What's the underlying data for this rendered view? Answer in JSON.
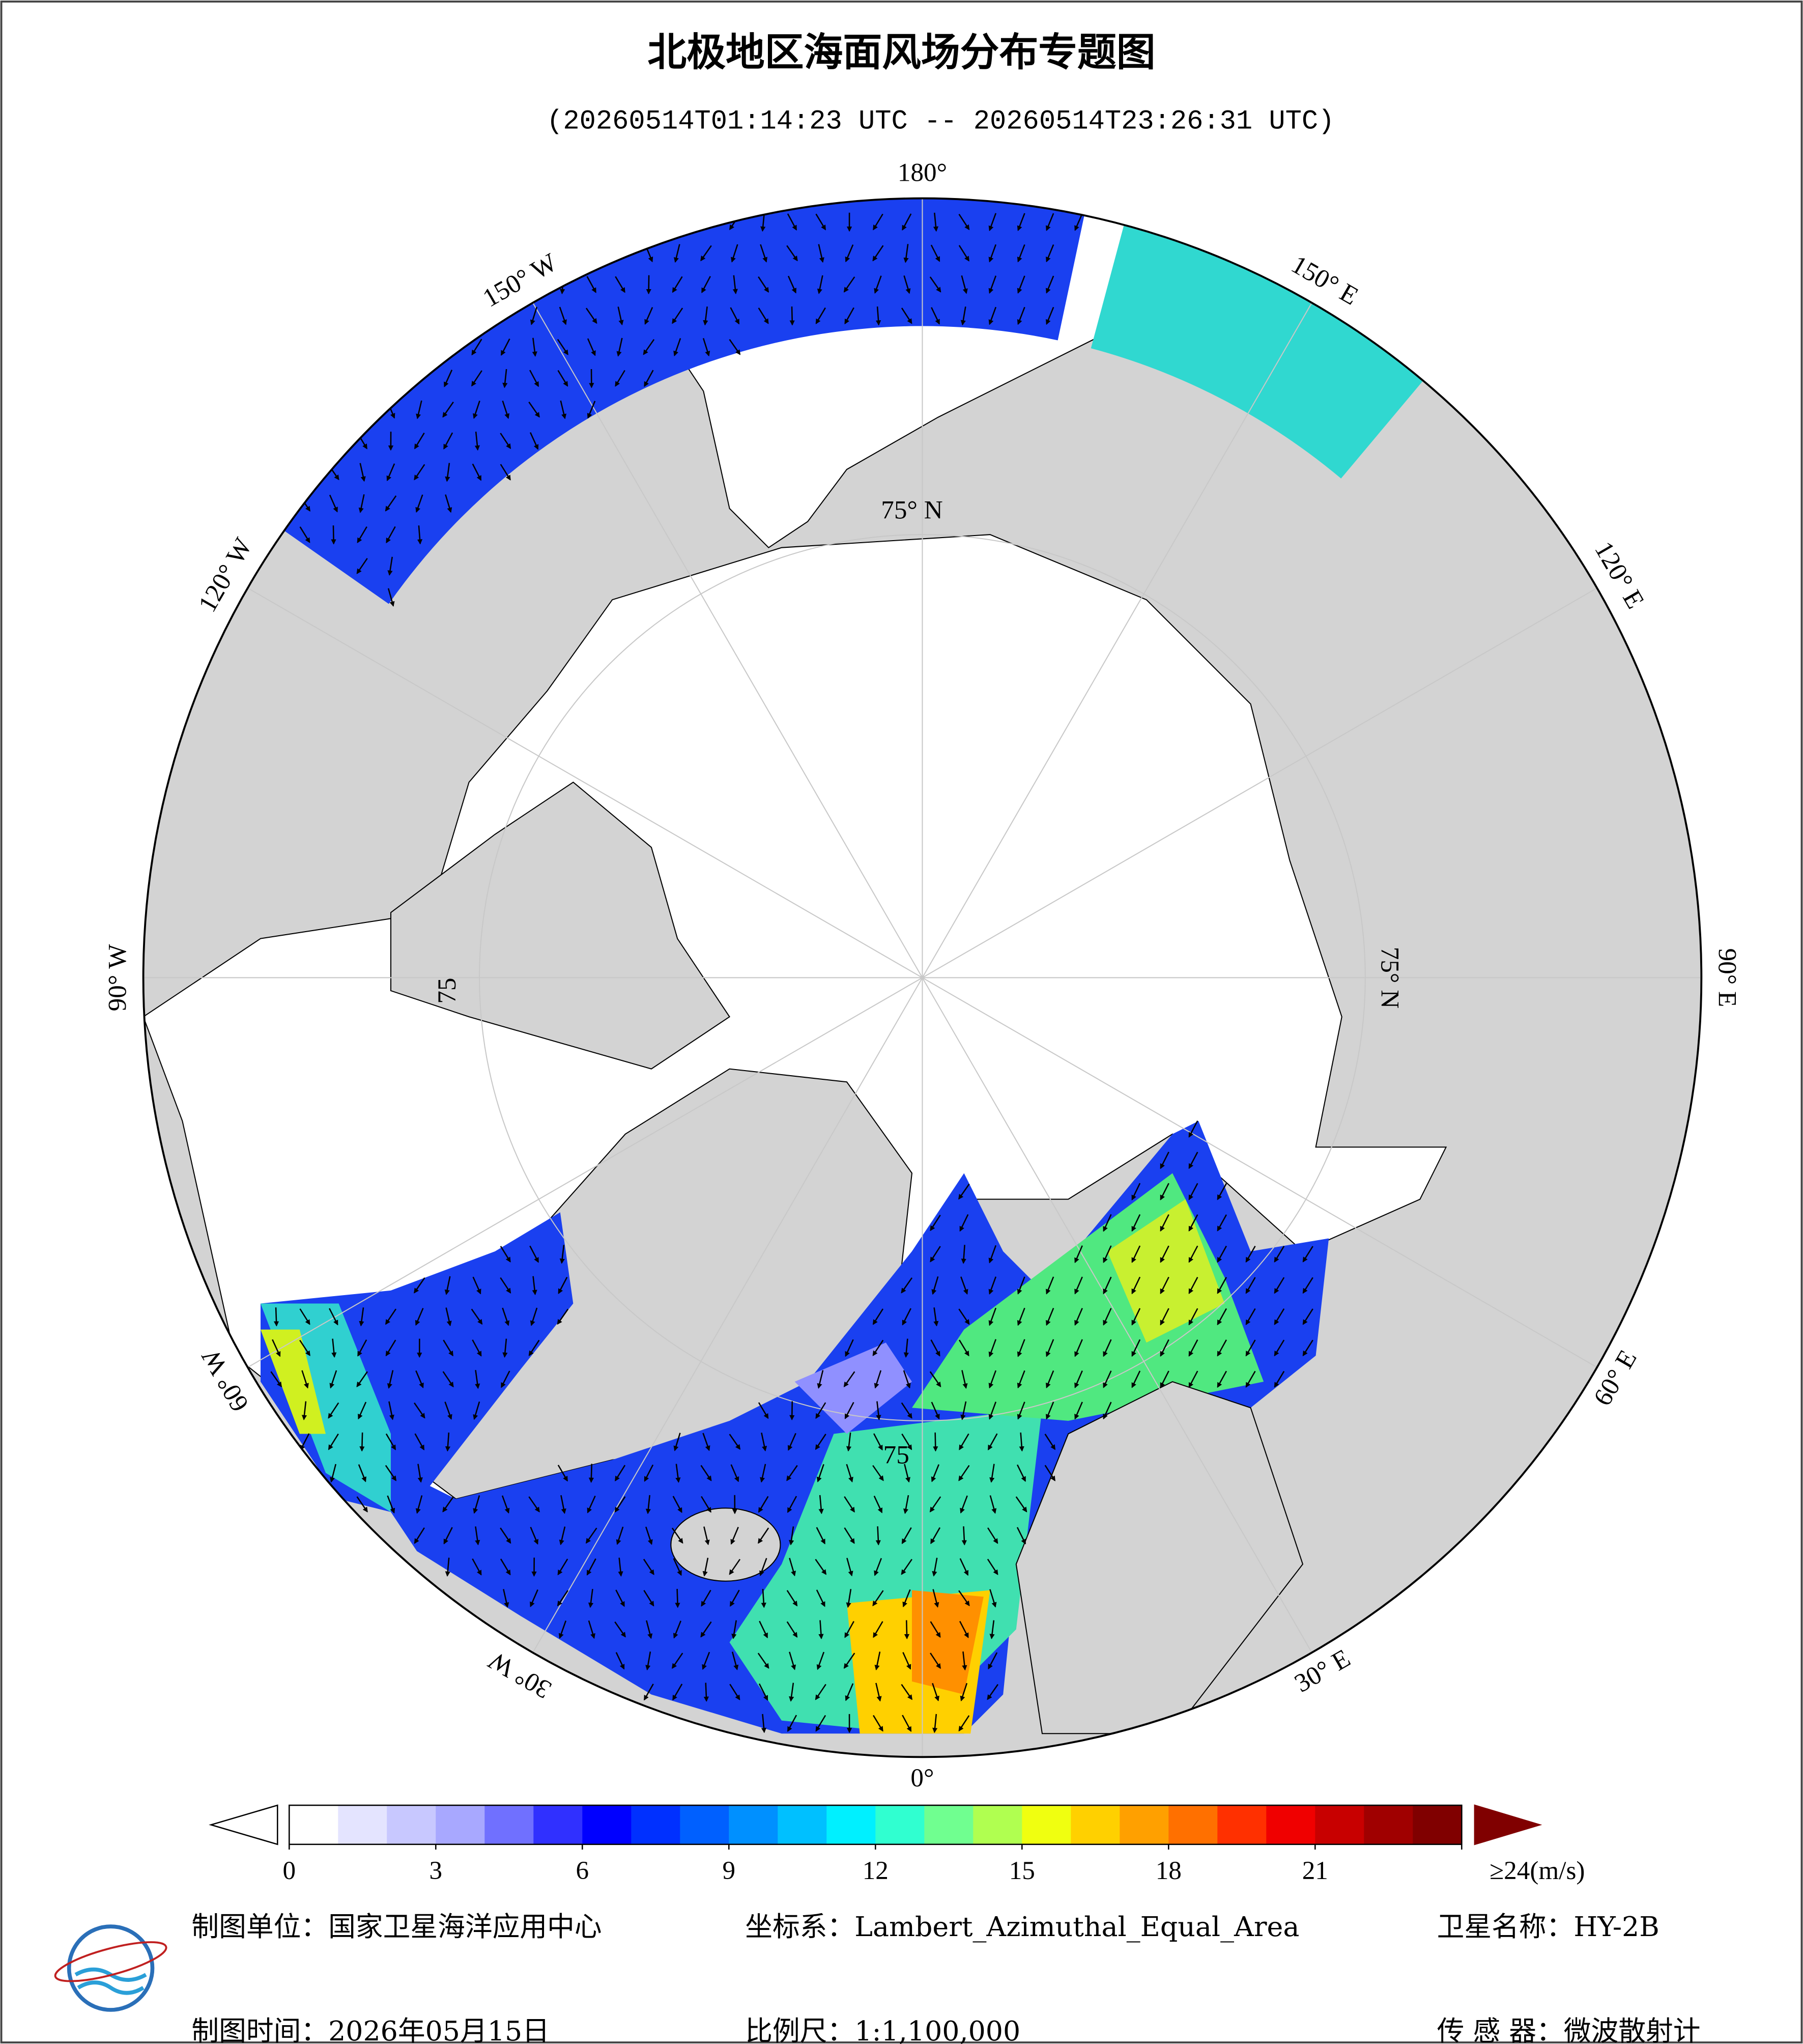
{
  "header": {
    "title": "北极地区海面风场分布专题图",
    "time_range": "(20260514T01:14:23 UTC -- 20260514T23:26:31 UTC)"
  },
  "map": {
    "meridian_labels": [
      "180°",
      "150° E",
      "120° E",
      "90° E",
      "60° E",
      "30° E",
      "0°",
      "30° W",
      "60° W",
      "90° W",
      "120° W",
      "150° W"
    ],
    "parallel_labels": [
      "75° N",
      "75° N",
      "75",
      "75"
    ]
  },
  "colorbar": {
    "lim": [
      0,
      24
    ],
    "ticks": [
      0,
      3,
      6,
      9,
      12,
      15,
      18,
      21,
      {
        "value": 24,
        "label": "≥24(m/s)"
      }
    ],
    "colors": [
      "#ffffff",
      "#e4e4ff",
      "#c8c8ff",
      "#a8a8ff",
      "#7070ff",
      "#3030ff",
      "#0000ff",
      "#0030ff",
      "#0060ff",
      "#0090ff",
      "#00c0ff",
      "#00f0ff",
      "#30ffd0",
      "#70ff90",
      "#b0ff50",
      "#f0ff10",
      "#ffd000",
      "#ffa000",
      "#ff7000",
      "#ff3000",
      "#f00000",
      "#c80000",
      "#a00000",
      "#800000"
    ],
    "under_color": "#ffffff",
    "over_color": "#800000"
  },
  "footer": {
    "unit": "制图单位：国家卫星海洋应用中心",
    "crs": "坐标系：Lambert_Azimuthal_Equal_Area",
    "satellite": "卫星名称：HY-2B",
    "date": "制图时间：2026年05月15日",
    "scale": "比例尺：1:1,100,000",
    "sensor": "传 感 器：微波散射计"
  }
}
